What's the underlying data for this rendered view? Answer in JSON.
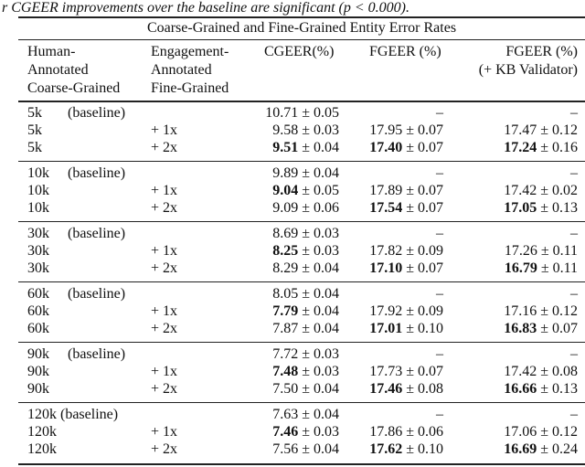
{
  "caption": "r CGEER improvements over the baseline are significant (p < 0.000).",
  "title": "Coarse-Grained and Fine-Grained Entity Error Rates",
  "headers": {
    "col1": [
      "Human-",
      "Annotated",
      "Coarse-Grained"
    ],
    "col2": [
      "Engagement-",
      "Annotated",
      "Fine-Grained"
    ],
    "col3": [
      "CGEER(%)"
    ],
    "col4": [
      "FGEER (%)"
    ],
    "col5": [
      "FGEER (%)",
      "(+ KB Validator)"
    ]
  },
  "groups": [
    {
      "rows": [
        {
          "human": "5k",
          "tag": "(baseline)",
          "eng": "",
          "cg": {
            "v": "10.71",
            "e": " ± 0.05",
            "b": false
          },
          "fg": {
            "v": "–",
            "e": "",
            "b": false
          },
          "kb": {
            "v": "–",
            "e": "",
            "b": false
          }
        },
        {
          "human": "5k",
          "tag": "",
          "eng": "+ 1x",
          "cg": {
            "v": "9.58",
            "e": " ± 0.03",
            "b": false
          },
          "fg": {
            "v": "17.95",
            "e": " ± 0.07",
            "b": false
          },
          "kb": {
            "v": "17.47",
            "e": " ± 0.12",
            "b": false
          }
        },
        {
          "human": "5k",
          "tag": "",
          "eng": "+ 2x",
          "cg": {
            "v": "9.51",
            "e": " ± 0.04",
            "b": true
          },
          "fg": {
            "v": "17.40",
            "e": " ± 0.07",
            "b": true
          },
          "kb": {
            "v": "17.24",
            "e": " ± 0.16",
            "b": true
          }
        }
      ]
    },
    {
      "rows": [
        {
          "human": "10k",
          "tag": "(baseline)",
          "eng": "",
          "cg": {
            "v": "9.89",
            "e": " ± 0.04",
            "b": false
          },
          "fg": {
            "v": "–",
            "e": "",
            "b": false
          },
          "kb": {
            "v": "–",
            "e": "",
            "b": false
          }
        },
        {
          "human": "10k",
          "tag": "",
          "eng": "+ 1x",
          "cg": {
            "v": "9.04",
            "e": " ± 0.05",
            "b": true
          },
          "fg": {
            "v": "17.89",
            "e": " ± 0.07",
            "b": false
          },
          "kb": {
            "v": "17.42",
            "e": " ± 0.02",
            "b": false
          }
        },
        {
          "human": "10k",
          "tag": "",
          "eng": "+ 2x",
          "cg": {
            "v": "9.09",
            "e": " ± 0.06",
            "b": false
          },
          "fg": {
            "v": "17.54",
            "e": " ± 0.07",
            "b": true
          },
          "kb": {
            "v": "17.05",
            "e": " ± 0.13",
            "b": true
          }
        }
      ]
    },
    {
      "rows": [
        {
          "human": "30k",
          "tag": "(baseline)",
          "eng": "",
          "cg": {
            "v": "8.69",
            "e": " ± 0.03",
            "b": false
          },
          "fg": {
            "v": "–",
            "e": "",
            "b": false
          },
          "kb": {
            "v": "–",
            "e": "",
            "b": false
          }
        },
        {
          "human": "30k",
          "tag": "",
          "eng": "+ 1x",
          "cg": {
            "v": "8.25",
            "e": " ± 0.03",
            "b": true
          },
          "fg": {
            "v": "17.82",
            "e": " ± 0.09",
            "b": false
          },
          "kb": {
            "v": "17.26",
            "e": " ± 0.11",
            "b": false
          }
        },
        {
          "human": "30k",
          "tag": "",
          "eng": "+ 2x",
          "cg": {
            "v": "8.29",
            "e": " ± 0.04",
            "b": false
          },
          "fg": {
            "v": "17.10",
            "e": " ± 0.07",
            "b": true
          },
          "kb": {
            "v": "16.79",
            "e": " ± 0.11",
            "b": true
          }
        }
      ]
    },
    {
      "rows": [
        {
          "human": "60k",
          "tag": "(baseline)",
          "eng": "",
          "cg": {
            "v": "8.05",
            "e": " ± 0.04",
            "b": false
          },
          "fg": {
            "v": "–",
            "e": "",
            "b": false
          },
          "kb": {
            "v": "–",
            "e": "",
            "b": false
          }
        },
        {
          "human": "60k",
          "tag": "",
          "eng": "+ 1x",
          "cg": {
            "v": "7.79",
            "e": " ± 0.04",
            "b": true
          },
          "fg": {
            "v": "17.92",
            "e": " ± 0.09",
            "b": false
          },
          "kb": {
            "v": "17.16",
            "e": " ± 0.12",
            "b": false
          }
        },
        {
          "human": "60k",
          "tag": "",
          "eng": "+ 2x",
          "cg": {
            "v": "7.87",
            "e": " ± 0.04",
            "b": false
          },
          "fg": {
            "v": "17.01",
            "e": " ± 0.10",
            "b": true
          },
          "kb": {
            "v": "16.83",
            "e": " ± 0.07",
            "b": true
          }
        }
      ]
    },
    {
      "rows": [
        {
          "human": "90k",
          "tag": "(baseline)",
          "eng": "",
          "cg": {
            "v": "7.72",
            "e": " ± 0.03",
            "b": false
          },
          "fg": {
            "v": "–",
            "e": "",
            "b": false
          },
          "kb": {
            "v": "–",
            "e": "",
            "b": false
          }
        },
        {
          "human": "90k",
          "tag": "",
          "eng": "+ 1x",
          "cg": {
            "v": "7.48",
            "e": " ± 0.03",
            "b": true
          },
          "fg": {
            "v": "17.73",
            "e": " ± 0.07",
            "b": false
          },
          "kb": {
            "v": "17.42",
            "e": " ± 0.08",
            "b": false
          }
        },
        {
          "human": "90k",
          "tag": "",
          "eng": "+ 2x",
          "cg": {
            "v": "7.50",
            "e": " ± 0.04",
            "b": false
          },
          "fg": {
            "v": "17.46",
            "e": " ± 0.08",
            "b": true
          },
          "kb": {
            "v": "16.66",
            "e": " ± 0.13",
            "b": true
          }
        }
      ]
    },
    {
      "rows": [
        {
          "human": "120k",
          "tag": "(baseline)",
          "eng": "",
          "cg": {
            "v": "7.63",
            "e": " ± 0.04",
            "b": false
          },
          "fg": {
            "v": "–",
            "e": "",
            "b": false
          },
          "kb": {
            "v": "–",
            "e": "",
            "b": false
          }
        },
        {
          "human": "120k",
          "tag": "",
          "eng": "+ 1x",
          "cg": {
            "v": "7.46",
            "e": " ± 0.03",
            "b": true
          },
          "fg": {
            "v": "17.86",
            "e": " ± 0.06",
            "b": false
          },
          "kb": {
            "v": "17.06",
            "e": " ± 0.12",
            "b": false
          }
        },
        {
          "human": "120k",
          "tag": "",
          "eng": "+ 2x",
          "cg": {
            "v": "7.56",
            "e": " ± 0.04",
            "b": false
          },
          "fg": {
            "v": "17.62",
            "e": " ± 0.10",
            "b": true
          },
          "kb": {
            "v": "16.69",
            "e": " ± 0.24",
            "b": true
          }
        }
      ]
    }
  ]
}
